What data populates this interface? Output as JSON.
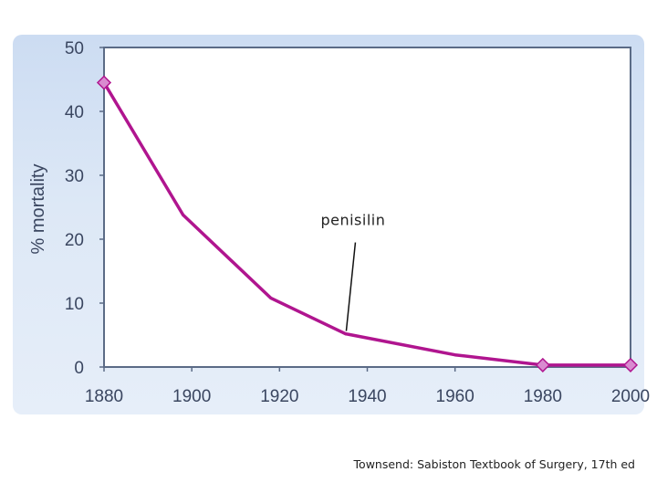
{
  "chart_data": {
    "type": "line",
    "ylabel": "% mortality",
    "xlabel": "",
    "x": [
      1880,
      1898,
      1918,
      1935,
      1960,
      1980,
      2000
    ],
    "xticks": [
      1880,
      1900,
      1920,
      1940,
      1960,
      1980,
      2000
    ],
    "yticks": [
      0,
      10,
      20,
      30,
      40,
      50
    ],
    "xlim": [
      1880,
      2000
    ],
    "ylim": [
      0,
      50
    ],
    "series": [
      {
        "values": [
          44.5,
          23.8,
          10.8,
          5.2,
          1.9,
          0.3,
          0.3
        ],
        "marker_points": [
          0,
          5,
          6
        ]
      }
    ],
    "annotation": {
      "text": "penisilin",
      "x": 1935,
      "y": 5.2
    },
    "grid": false,
    "colors": {
      "line": "#b0158f",
      "marker_fill": "#d98bd0",
      "marker_stroke": "#b0158f",
      "panel": "#dde8f6",
      "plot_area": "#ffffff",
      "plot_border": "#5b6b86"
    }
  },
  "caption": "Townsend: Sabiston Textbook of Surgery, 17th ed"
}
